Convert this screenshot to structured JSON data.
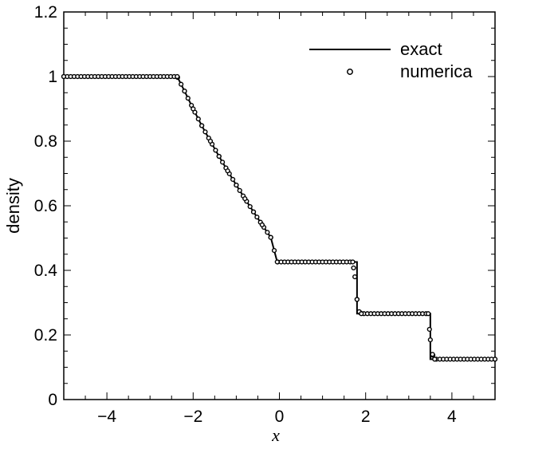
{
  "chart_data": {
    "type": "line",
    "xlabel": "x",
    "ylabel": "density",
    "xlim": [
      -5,
      5
    ],
    "ylim": [
      0,
      1.2
    ],
    "x_ticks": [
      -4,
      -2,
      0,
      2,
      4
    ],
    "x_tick_labels": [
      "−4",
      "−2",
      "0",
      "2",
      "4"
    ],
    "y_ticks": [
      0,
      0.2,
      0.4,
      0.6,
      0.8,
      1,
      1.2
    ],
    "y_tick_labels": [
      "0",
      "0.2",
      "0.4",
      "0.6",
      "0.8",
      "1",
      "1.2"
    ],
    "grid": false,
    "legend_position": "top-right",
    "series": [
      {
        "name": "exact",
        "style": "line",
        "color": "#000000",
        "x": [
          -5,
          -2.37,
          -2.2,
          -2.0,
          -1.8,
          -1.6,
          -1.4,
          -1.2,
          -1.0,
          -0.8,
          -0.6,
          -0.4,
          -0.2,
          -0.05,
          1.8,
          1.8,
          3.5,
          3.5,
          5
        ],
        "y": [
          1.0,
          1.0,
          0.955,
          0.9,
          0.848,
          0.8,
          0.753,
          0.708,
          0.664,
          0.622,
          0.581,
          0.541,
          0.502,
          0.426,
          0.426,
          0.266,
          0.266,
          0.125,
          0.125
        ]
      },
      {
        "name": "numerica",
        "style": "markers",
        "marker": "open-circle",
        "color": "#000000",
        "x": [
          -5,
          -2.37,
          -2.2,
          -2.0,
          -1.8,
          -1.6,
          -1.4,
          -1.2,
          -1.0,
          -0.8,
          -0.6,
          -0.4,
          -0.2,
          -0.05,
          1.7,
          1.75,
          1.8,
          1.85,
          1.9,
          3.45,
          3.5,
          3.55,
          3.6,
          5
        ],
        "y": [
          1.0,
          1.0,
          0.955,
          0.9,
          0.848,
          0.8,
          0.753,
          0.708,
          0.664,
          0.622,
          0.581,
          0.541,
          0.502,
          0.426,
          0.426,
          0.38,
          0.31,
          0.272,
          0.266,
          0.266,
          0.185,
          0.14,
          0.125,
          0.125
        ]
      }
    ]
  }
}
